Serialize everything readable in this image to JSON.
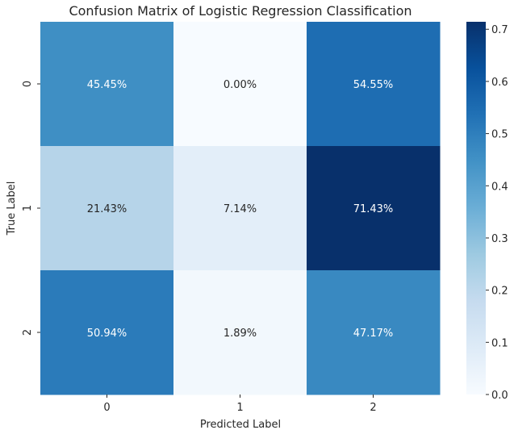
{
  "chart_data": {
    "type": "heatmap",
    "title": "Confusion Matrix of Logistic Regression Classification",
    "xlabel": "Predicted Label",
    "ylabel": "True Label",
    "x_categories": [
      "0",
      "1",
      "2"
    ],
    "y_categories": [
      "0",
      "1",
      "2"
    ],
    "values": [
      [
        0.4545,
        0.0,
        0.5455
      ],
      [
        0.2143,
        0.0714,
        0.7143
      ],
      [
        0.5094,
        0.0189,
        0.4717
      ]
    ],
    "cell_labels": [
      [
        "45.45%",
        "0.00%",
        "54.55%"
      ],
      [
        "21.43%",
        "7.14%",
        "71.43%"
      ],
      [
        "50.94%",
        "1.89%",
        "47.17%"
      ]
    ],
    "colormap": "Blues",
    "colorbar": {
      "min": 0.0,
      "max": 0.7143,
      "ticks": [
        0.0,
        0.1,
        0.2,
        0.3,
        0.4,
        0.5,
        0.6,
        0.7
      ],
      "tick_labels": [
        "0.0",
        "0.1",
        "0.2",
        "0.3",
        "0.4",
        "0.5",
        "0.6",
        "0.7"
      ]
    }
  }
}
